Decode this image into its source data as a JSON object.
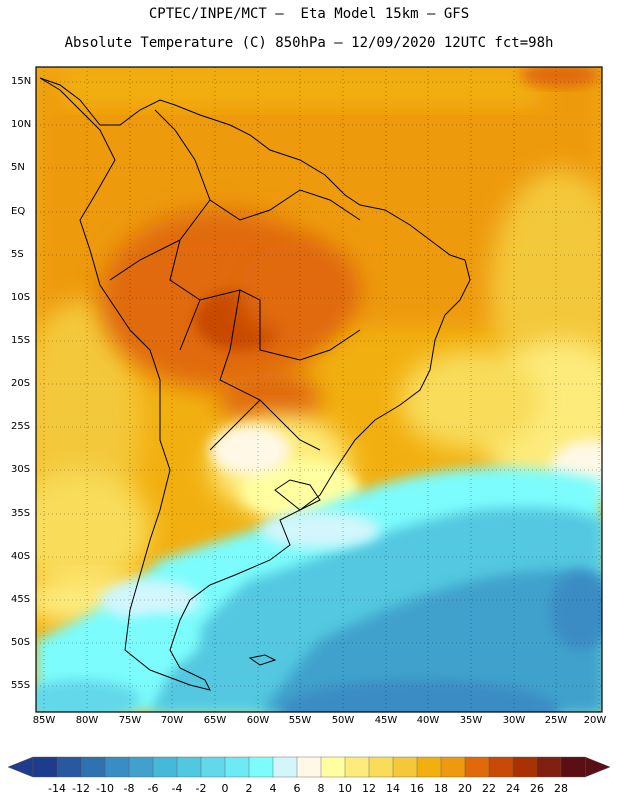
{
  "header": {
    "line1": "CPTEC/INPE/MCT –  Eta Model 15km – GFS",
    "line2": "Absolute Temperature (C) 850hPa – 12/09/2020 12UTC fct=98h"
  },
  "map": {
    "variable": "Absolute Temperature",
    "units": "C",
    "level": "850hPa",
    "lat_labels": [
      "15N",
      "10N",
      "5N",
      "EQ",
      "5S",
      "10S",
      "15S",
      "20S",
      "25S",
      "30S",
      "35S",
      "40S",
      "45S",
      "50S",
      "55S"
    ],
    "lon_labels": [
      "85W",
      "80W",
      "75W",
      "70W",
      "65W",
      "60W",
      "55W",
      "50W",
      "45W",
      "40W",
      "35W",
      "30W",
      "25W",
      "20W"
    ]
  },
  "colorbar": {
    "labels": [
      "-14",
      "-12",
      "-10",
      "-8",
      "-6",
      "-4",
      "-2",
      "0",
      "2",
      "4",
      "6",
      "8",
      "10",
      "12",
      "14",
      "16",
      "18",
      "20",
      "22",
      "24",
      "26",
      "28"
    ],
    "colors": [
      "#1e3c8c",
      "#2a58a0",
      "#2f72b0",
      "#3a8cc4",
      "#40a2cc",
      "#46b8d8",
      "#52c8e0",
      "#62d8ea",
      "#6eeaf5",
      "#7cfcfc",
      "#d2f6fc",
      "#fff8e6",
      "#ffffa0",
      "#fdeb7c",
      "#f8dc5a",
      "#f4c83a",
      "#f2b010",
      "#ee9a10",
      "#e06a0a",
      "#c84a06",
      "#a83204",
      "#802010",
      "#5a0f14"
    ]
  }
}
